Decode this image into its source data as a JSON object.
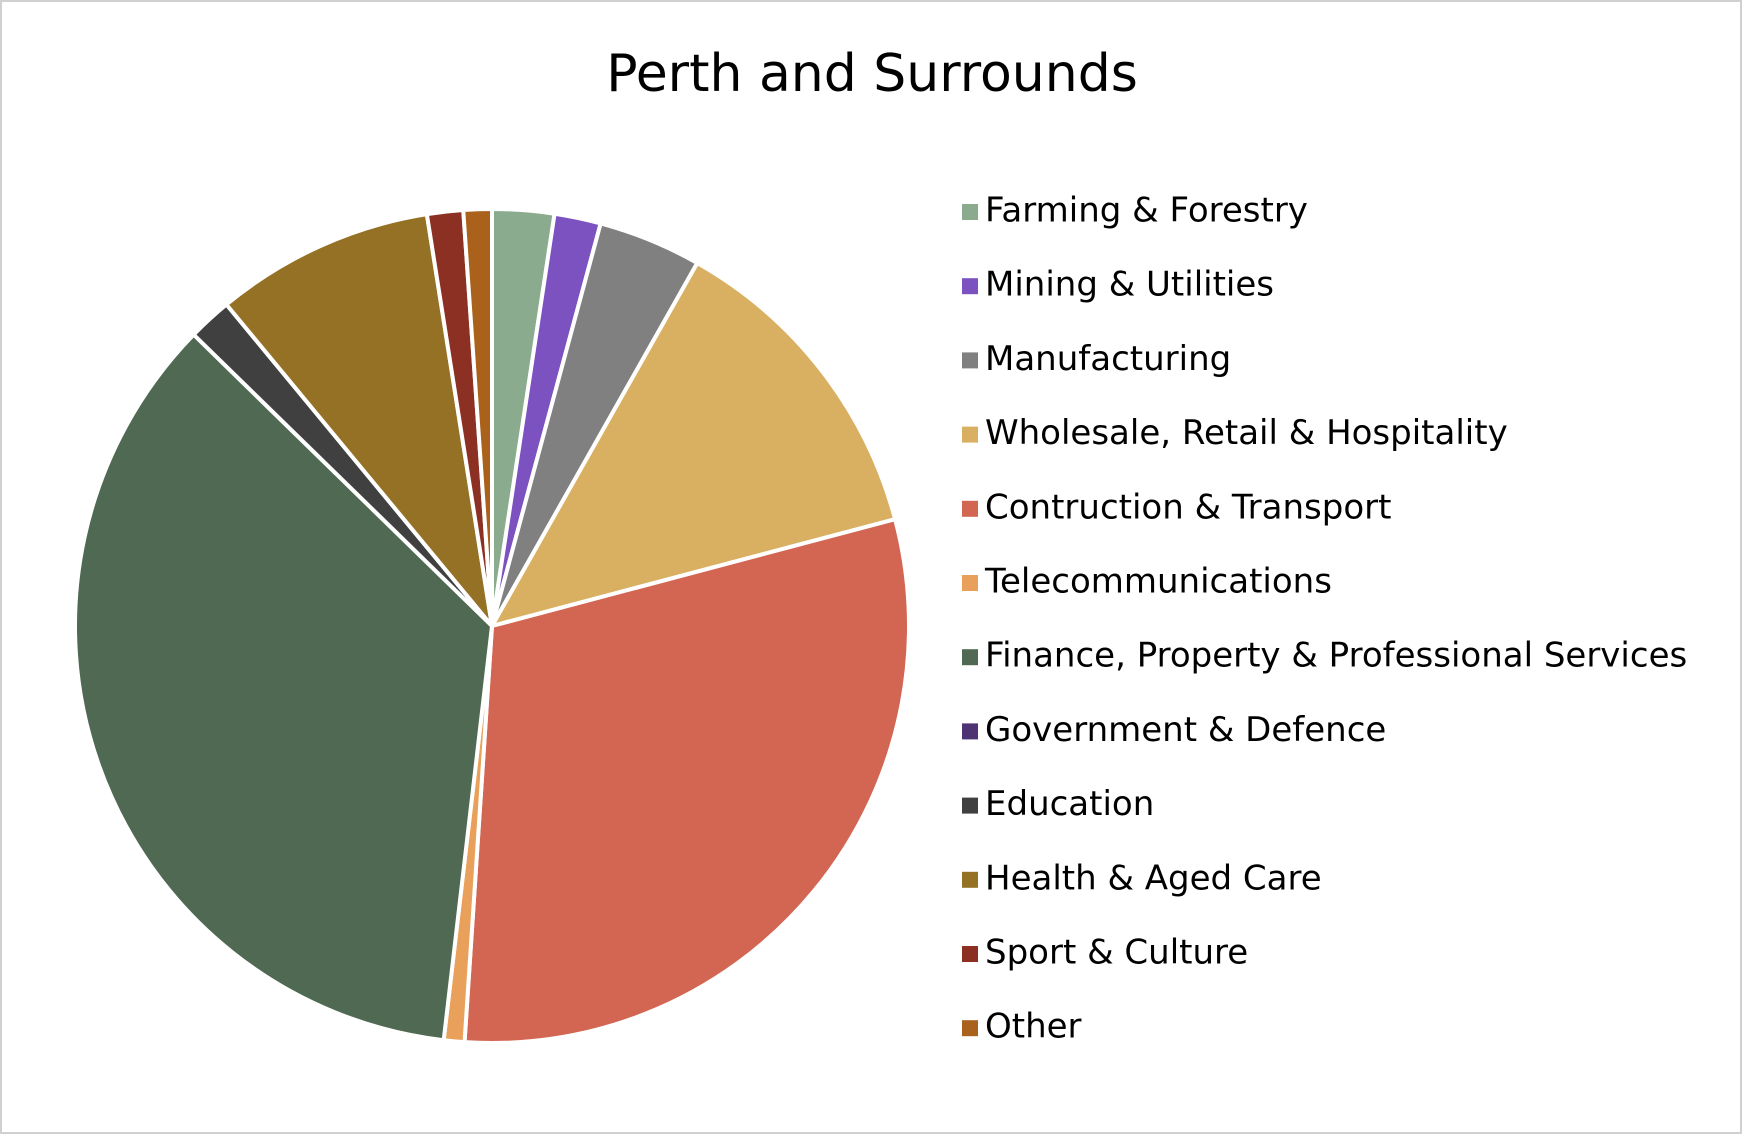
{
  "chart_data": {
    "type": "pie",
    "title": "Perth and Surrounds",
    "categories": [
      "Farming & Forestry",
      "Mining & Utilities",
      "Manufacturing",
      "Wholesale, Retail & Hospitality",
      "Contruction & Transport",
      "Telecommunications",
      "Finance, Property & Professional Services",
      "Government & Defence",
      "Education",
      "Health & Aged Care",
      "Sport & Culture",
      "Other"
    ],
    "values": [
      2.4,
      1.8,
      4.0,
      12.7,
      30.2,
      0.8,
      35.5,
      0,
      1.7,
      8.5,
      1.4,
      1.1
    ],
    "colors": [
      "#8aab8e",
      "#7b52c0",
      "#808080",
      "#d9b062",
      "#d26653",
      "#e8a05a",
      "#4f6952",
      "#4e3373",
      "#404040",
      "#957126",
      "#8c3023",
      "#a9611b"
    ],
    "legend": "right"
  }
}
